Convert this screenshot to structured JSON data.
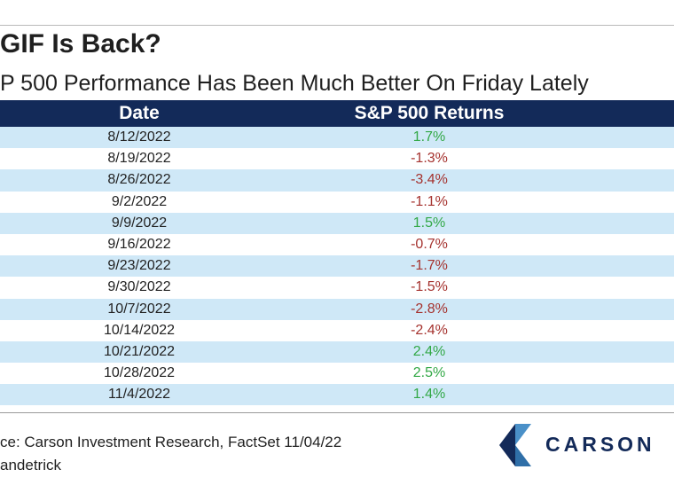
{
  "title": "GIF Is Back?",
  "subtitle": "P 500 Performance Has Been Much Better On Friday Lately",
  "source": "ce: Carson Investment Research, FactSet 11/04/22",
  "credit": "andetrick",
  "logo_text": "CARSON",
  "colors": {
    "header": "#132a59",
    "stripe": "#cfe8f7",
    "positive": "#32a846",
    "negative": "#a5322e"
  },
  "chart_data": {
    "type": "table",
    "columns": [
      "Date",
      "S&P 500 Returns"
    ],
    "rows": [
      {
        "date": "8/12/2022",
        "ret": "1.7%",
        "value": 1.7
      },
      {
        "date": "8/19/2022",
        "ret": "-1.3%",
        "value": -1.3
      },
      {
        "date": "8/26/2022",
        "ret": "-3.4%",
        "value": -3.4
      },
      {
        "date": "9/2/2022",
        "ret": "-1.1%",
        "value": -1.1
      },
      {
        "date": "9/9/2022",
        "ret": "1.5%",
        "value": 1.5
      },
      {
        "date": "9/16/2022",
        "ret": "-0.7%",
        "value": -0.7
      },
      {
        "date": "9/23/2022",
        "ret": "-1.7%",
        "value": -1.7
      },
      {
        "date": "9/30/2022",
        "ret": "-1.5%",
        "value": -1.5
      },
      {
        "date": "10/7/2022",
        "ret": "-2.8%",
        "value": -2.8
      },
      {
        "date": "10/14/2022",
        "ret": "-2.4%",
        "value": -2.4
      },
      {
        "date": "10/21/2022",
        "ret": "2.4%",
        "value": 2.4
      },
      {
        "date": "10/28/2022",
        "ret": "2.5%",
        "value": 2.5
      },
      {
        "date": "11/4/2022",
        "ret": "1.4%",
        "value": 1.4
      }
    ]
  }
}
